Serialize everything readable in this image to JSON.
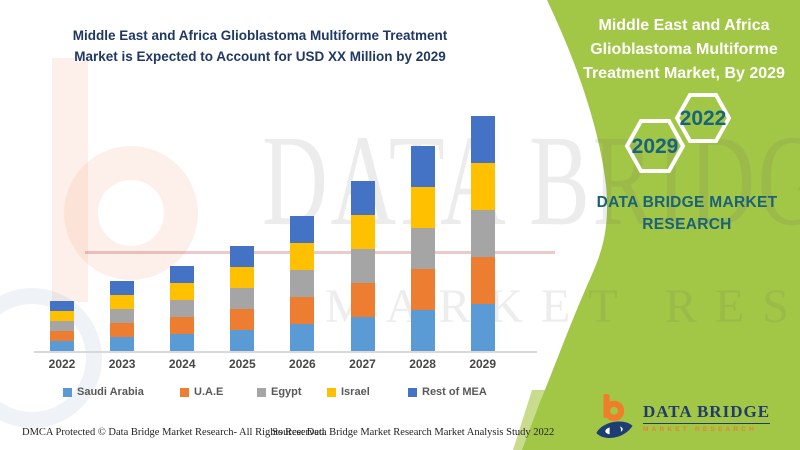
{
  "header": {
    "title_line1": "Middle East and Africa Glioblastoma Multiforme Treatment",
    "title_line2": "Market is Expected to Account for USD XX Million by 2029"
  },
  "side_panel": {
    "title_line1": "Middle East and Africa",
    "title_line2": "Glioblastoma Multiforme",
    "title_line3": "Treatment Market, By 2029",
    "hexagons": [
      {
        "label": "2029"
      },
      {
        "label": "2022"
      }
    ],
    "brand_line1": "DATA BRIDGE MARKET",
    "brand_line2": "RESEARCH"
  },
  "logo": {
    "name": "DATA BRIDGE",
    "tagline": "MARKET RESEARCH"
  },
  "watermark": {
    "line1": "DATA BRIDGE",
    "line2": "MARKET RESEARCH"
  },
  "footer": {
    "dmca": "DMCA Protected © Data Bridge Market Research- All Rights Reserved.",
    "source": "Source: Data Bridge Market Research Market Analysis Study 2022"
  },
  "chart_data": {
    "type": "bar",
    "stacked": true,
    "title": "Middle East and Africa Glioblastoma Multiforme Treatment Market is Expected to Account for USD XX Million by 2029",
    "xlabel": "",
    "ylabel": "",
    "units": "relative index (actual values shown as USD XX Million, undisclosed)",
    "grid": false,
    "y_axis_visible": false,
    "legend_position": "bottom",
    "categories": [
      "2022",
      "2023",
      "2024",
      "2025",
      "2026",
      "2027",
      "2028",
      "2029"
    ],
    "series": [
      {
        "name": "Saudi Arabia",
        "color": "#5b9bd5",
        "values": [
          10,
          14,
          17,
          21,
          27,
          34,
          41,
          47
        ]
      },
      {
        "name": "U.A.E",
        "color": "#ed7d31",
        "values": [
          10,
          14,
          17,
          21,
          27,
          34,
          41,
          47
        ]
      },
      {
        "name": "Egypt",
        "color": "#a5a5a5",
        "values": [
          10,
          14,
          17,
          21,
          27,
          34,
          41,
          47
        ]
      },
      {
        "name": "Israel",
        "color": "#ffc000",
        "values": [
          10,
          14,
          17,
          21,
          27,
          34,
          41,
          47
        ]
      },
      {
        "name": "Rest of MEA",
        "color": "#4472c4",
        "values": [
          10,
          14,
          17,
          21,
          27,
          34,
          41,
          47
        ]
      }
    ],
    "bar_totals": [
      50,
      70,
      85,
      105,
      135,
      170,
      205,
      235
    ]
  },
  "colors": {
    "panel_green": "#a2c645",
    "panel_green_light": "#c9dc8e",
    "title_navy": "#1f3864",
    "teal_text": "#1a617c",
    "axis_gray": "#d9d9d9",
    "label_gray": "#595959",
    "logo_orange": "#ef7d2a",
    "logo_navy": "#1d3d73"
  }
}
